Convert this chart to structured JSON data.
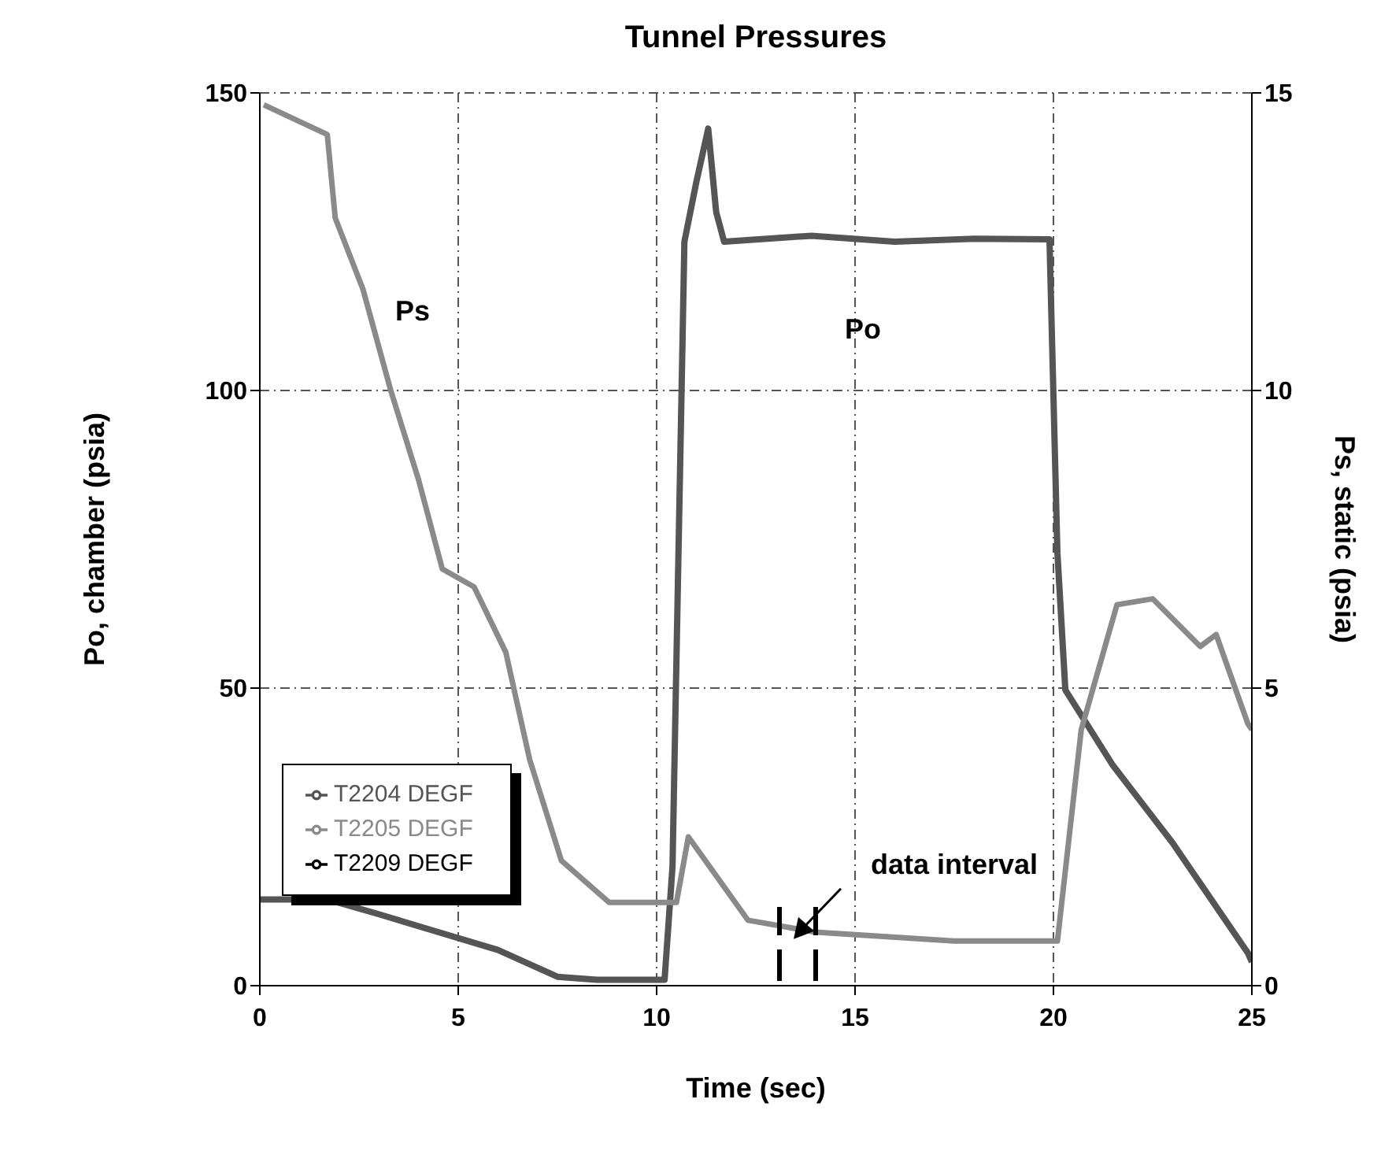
{
  "chart_data": {
    "type": "line",
    "title": "Tunnel Pressures",
    "xlabel": "Time (sec)",
    "ylabel": "Po, chamber (psia)",
    "y2label": "Ps, static (psia)",
    "xlim": [
      0,
      25
    ],
    "xticks": [
      0,
      5,
      10,
      15,
      20,
      25
    ],
    "ylim": [
      0,
      150
    ],
    "yticks": [
      0,
      50,
      100,
      150
    ],
    "y2lim": [
      0,
      15
    ],
    "y2ticks": [
      0,
      5,
      10,
      15
    ],
    "grid": true,
    "legend": "bottom left",
    "line_style": "solid",
    "series": [
      {
        "name": "T2204 DEGF",
        "color": "#555555",
        "x": [
          0,
          1.7,
          3,
          4.5,
          6,
          7.5,
          8.5,
          10.2,
          10.4,
          10.7,
          11.0,
          11.3,
          11.5,
          11.7,
          13.9,
          16,
          18,
          19.9,
          20.1,
          20.3,
          21.5,
          23,
          24.9,
          25
        ],
        "values": [
          14.5,
          14.5,
          12,
          9,
          6,
          1.5,
          1,
          1,
          20,
          125,
          135,
          144,
          130,
          125,
          126,
          125,
          125.5,
          125.4,
          72.7,
          49.7,
          37,
          24,
          5.5,
          4
        ]
      },
      {
        "name": "T2205 DEGF",
        "color": "#8a8a8a",
        "axis": "y2",
        "x": [
          0.1,
          1.7,
          1.9,
          2.6,
          3.3,
          4.0,
          4.6,
          5.4,
          6.2,
          6.8,
          7.6,
          8.8,
          10.1,
          10.5,
          10.8,
          12.3,
          14.0,
          17.5,
          20.1,
          20.7,
          21.6,
          22.5,
          23.7,
          24.1,
          24.9,
          25
        ],
        "values": [
          14.8,
          14.3,
          12.9,
          11.7,
          10.0,
          8.5,
          7.0,
          6.7,
          5.6,
          3.8,
          2.1,
          1.4,
          1.4,
          1.4,
          2.5,
          1.1,
          0.9,
          0.75,
          0.75,
          4.3,
          6.4,
          6.5,
          5.7,
          5.9,
          4.4,
          4.3
        ]
      },
      {
        "name": "T2209 DEGF",
        "color": "#000000"
      }
    ],
    "annotations": [
      "Po",
      "Ps",
      "data interval"
    ]
  }
}
